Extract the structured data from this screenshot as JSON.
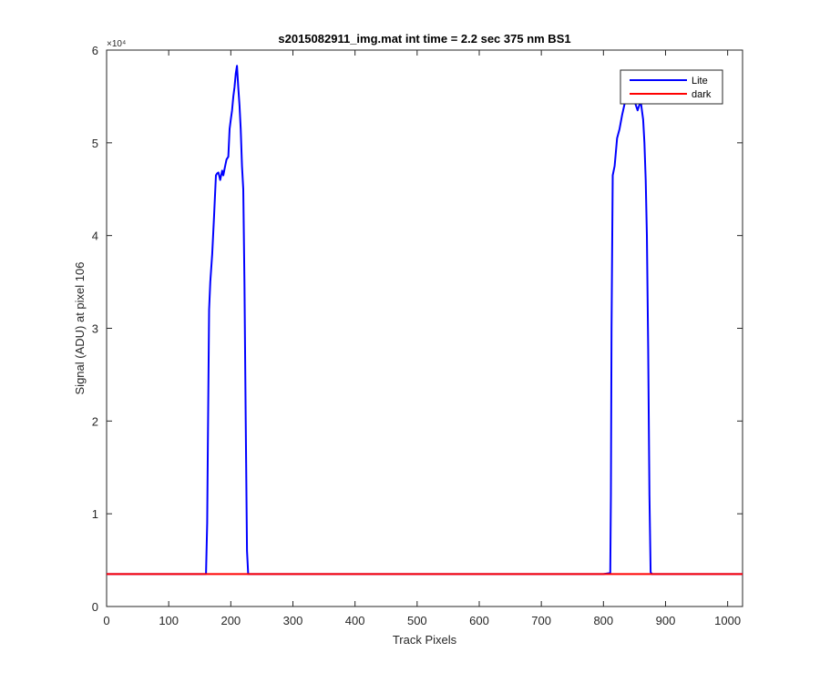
{
  "chart_data": {
    "type": "line",
    "title": "s2015082911_img.mat int time = 2.2 sec  375 nm BS1",
    "xlabel": "Track Pixels",
    "ylabel": "Signal (ADU) at pixel 106",
    "xlim": [
      0,
      1024
    ],
    "ylim": [
      0,
      60000
    ],
    "xticks": [
      0,
      100,
      200,
      300,
      400,
      500,
      600,
      700,
      800,
      900,
      1000
    ],
    "xtick_labels": [
      "0",
      "100",
      "200",
      "300",
      "400",
      "500",
      "600",
      "700",
      "800",
      "900",
      "1000"
    ],
    "yticks": [
      0,
      10000,
      20000,
      30000,
      40000,
      50000,
      60000
    ],
    "ytick_labels": [
      "0",
      "1",
      "2",
      "3",
      "4",
      "5",
      "6"
    ],
    "y_exponent_label": "×10⁴",
    "grid": false,
    "legend_position": "top-right",
    "series": [
      {
        "name": "Lite",
        "color": "#0000ff",
        "x": [
          0,
          160,
          162,
          163,
          165,
          167,
          170,
          173,
          176,
          178,
          180,
          183,
          186,
          188,
          190,
          193,
          196,
          198,
          200,
          202,
          204,
          206,
          208,
          210,
          212,
          214,
          216,
          218,
          220,
          222,
          224,
          226,
          228,
          250,
          400,
          600,
          800,
          811,
          812,
          813,
          815,
          818,
          822,
          826,
          830,
          835,
          840,
          845,
          850,
          855,
          860,
          864,
          866,
          868,
          870,
          872,
          874,
          876,
          878,
          900,
          1024
        ],
        "y": [
          3500,
          3500,
          9000,
          17000,
          32000,
          35000,
          38000,
          42000,
          46500,
          46700,
          46800,
          46000,
          47000,
          46500,
          47200,
          48200,
          48500,
          51500,
          52500,
          53500,
          55000,
          56000,
          57500,
          58300,
          56000,
          54000,
          51500,
          47500,
          45000,
          35000,
          20000,
          6000,
          3500,
          3500,
          3500,
          3500,
          3500,
          3600,
          12000,
          30000,
          46500,
          47500,
          50500,
          51500,
          53000,
          54500,
          54800,
          55500,
          54500,
          53500,
          54500,
          52500,
          50000,
          46000,
          40000,
          28000,
          12000,
          3700,
          3500,
          3500,
          3500
        ]
      },
      {
        "name": "dark",
        "color": "#ff0000",
        "x": [
          0,
          1024
        ],
        "y": [
          3500,
          3500
        ]
      }
    ]
  }
}
